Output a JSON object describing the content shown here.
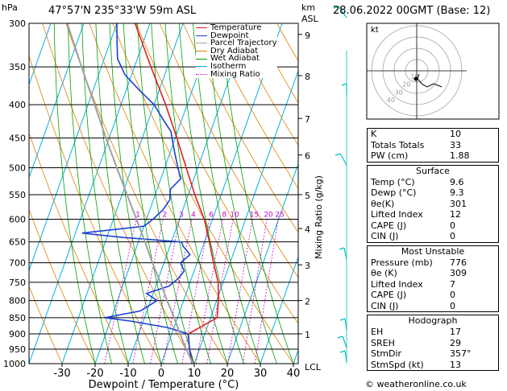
{
  "header": {
    "hpa_label": "hPa",
    "location": "47°57'N  235°33'W  59m  ASL",
    "km_label": "km",
    "asl_label": "ASL",
    "datetime": "28.06.2022  00GMT  (Base: 12)"
  },
  "legend": [
    {
      "label": "Temperature",
      "color": "#e02020",
      "dash": ""
    },
    {
      "label": "Dewpoint",
      "color": "#1c3fd8",
      "dash": ""
    },
    {
      "label": "Parcel Trajectory",
      "color": "#a0a0a0",
      "dash": ""
    },
    {
      "label": "Dry Adiabat",
      "color": "#e08000",
      "dash": ""
    },
    {
      "label": "Wet Adiabat",
      "color": "#00a000",
      "dash": ""
    },
    {
      "label": "Isotherm",
      "color": "#00b0e0",
      "dash": ""
    },
    {
      "label": "Mixing Ratio",
      "color": "#d000d0",
      "dash": "2,2"
    }
  ],
  "chart_data": {
    "type": "line",
    "xlabel": "Dewpoint / Temperature (°C)",
    "ylabel_right": "Mixing Ratio (g/kg)",
    "x_ticks": [
      -30,
      -20,
      -10,
      0,
      10,
      20,
      30,
      40
    ],
    "pressure_levels": [
      300,
      350,
      400,
      450,
      500,
      550,
      600,
      650,
      700,
      750,
      800,
      850,
      900,
      950,
      1000
    ],
    "km_ticks": [
      {
        "label": "9",
        "p": 312
      },
      {
        "label": "8",
        "p": 361
      },
      {
        "label": "7",
        "p": 420
      },
      {
        "label": "6",
        "p": 478
      },
      {
        "label": "5",
        "p": 550
      },
      {
        "label": "4",
        "p": 620
      },
      {
        "label": "3",
        "p": 705
      },
      {
        "label": "2",
        "p": 800
      },
      {
        "label": "1",
        "p": 900
      }
    ],
    "lcl_label": "LCL",
    "mixing_ratio_labels": [
      "1",
      "2",
      "3",
      "4",
      "6",
      "8",
      "10",
      "15",
      "20",
      "25"
    ],
    "series": [
      {
        "name": "Temperature",
        "color": "#e02020",
        "points": [
          [
            1000,
            9.6
          ],
          [
            950,
            7.0
          ],
          [
            900,
            5.0
          ],
          [
            850,
            12.0
          ],
          [
            800,
            10.5
          ],
          [
            750,
            8.5
          ],
          [
            700,
            5.0
          ],
          [
            650,
            1.5
          ],
          [
            600,
            -2.5
          ],
          [
            550,
            -8.0
          ],
          [
            500,
            -13.5
          ],
          [
            450,
            -19.5
          ],
          [
            400,
            -26.5
          ],
          [
            350,
            -35.0
          ],
          [
            300,
            -44.5
          ]
        ]
      },
      {
        "name": "Dewpoint",
        "color": "#1c3fd8",
        "points": [
          [
            1000,
            9.3
          ],
          [
            950,
            7.0
          ],
          [
            900,
            5.0
          ],
          [
            880,
            -2.0
          ],
          [
            860,
            -14.0
          ],
          [
            850,
            -22.0
          ],
          [
            830,
            -12.0
          ],
          [
            800,
            -8.0
          ],
          [
            780,
            -12.0
          ],
          [
            760,
            -6.0
          ],
          [
            740,
            -4.0
          ],
          [
            720,
            -3.0
          ],
          [
            700,
            -5.0
          ],
          [
            680,
            -3.0
          ],
          [
            660,
            -6.0
          ],
          [
            650,
            -7.0
          ],
          [
            640,
            -25.0
          ],
          [
            630,
            -38.0
          ],
          [
            615,
            -20.0
          ],
          [
            600,
            -18.0
          ],
          [
            580,
            -16.0
          ],
          [
            560,
            -15.0
          ],
          [
            540,
            -16.0
          ],
          [
            520,
            -14.0
          ],
          [
            500,
            -16.0
          ],
          [
            480,
            -18.0
          ],
          [
            460,
            -20.0
          ],
          [
            440,
            -22.0
          ],
          [
            420,
            -26.0
          ],
          [
            400,
            -30.0
          ],
          [
            380,
            -36.0
          ],
          [
            360,
            -42.0
          ],
          [
            340,
            -46.0
          ],
          [
            320,
            -48.0
          ],
          [
            300,
            -50.0
          ]
        ]
      },
      {
        "name": "Parcel Trajectory",
        "color": "#a0a0a0",
        "points": [
          [
            1000,
            9.6
          ],
          [
            950,
            6.0
          ],
          [
            900,
            2.5
          ],
          [
            850,
            -1.0
          ],
          [
            800,
            -5.0
          ],
          [
            750,
            -9.0
          ],
          [
            700,
            -13.5
          ],
          [
            650,
            -18.0
          ],
          [
            600,
            -23.0
          ],
          [
            550,
            -28.5
          ],
          [
            500,
            -34.5
          ],
          [
            450,
            -41.0
          ],
          [
            400,
            -48.0
          ],
          [
            350,
            -56.0
          ],
          [
            300,
            -65.0
          ]
        ]
      }
    ]
  },
  "hodograph": {
    "label": "kt",
    "ring_labels": [
      "10",
      "20",
      "30",
      "40"
    ]
  },
  "indices": {
    "top": [
      {
        "label": "K",
        "value": "10"
      },
      {
        "label": "Totals Totals",
        "value": "33"
      },
      {
        "label": "PW (cm)",
        "value": "1.88"
      }
    ],
    "surface": {
      "title": "Surface",
      "rows": [
        {
          "label": "Temp (°C)",
          "value": "9.6"
        },
        {
          "label": "Dewp (°C)",
          "value": "9.3"
        },
        {
          "label": "θe(K)",
          "value": "301"
        },
        {
          "label": "Lifted Index",
          "value": "12"
        },
        {
          "label": "CAPE (J)",
          "value": "0"
        },
        {
          "label": "CIN (J)",
          "value": "0"
        }
      ]
    },
    "most_unstable": {
      "title": "Most Unstable",
      "rows": [
        {
          "label": "Pressure (mb)",
          "value": "776"
        },
        {
          "label": "θe (K)",
          "value": "309"
        },
        {
          "label": "Lifted Index",
          "value": "7"
        },
        {
          "label": "CAPE (J)",
          "value": "0"
        },
        {
          "label": "CIN (J)",
          "value": "0"
        }
      ]
    },
    "hodograph": {
      "title": "Hodograph",
      "rows": [
        {
          "label": "EH",
          "value": "17"
        },
        {
          "label": "SREH",
          "value": "29"
        },
        {
          "label": "StmDir",
          "value": "357°"
        },
        {
          "label": "StmSpd (kt)",
          "value": "13"
        }
      ]
    }
  },
  "credit": "© weatheronline.co.uk",
  "colors": {
    "temperature": "#e02020",
    "dewpoint": "#1c3fd8",
    "parcel": "#a0a0a0",
    "dry_adiabat": "#e08000",
    "wet_adiabat": "#00a000",
    "isotherm": "#00b0e0",
    "mixing_ratio": "#d000d0",
    "wind": "#00c0c0"
  }
}
